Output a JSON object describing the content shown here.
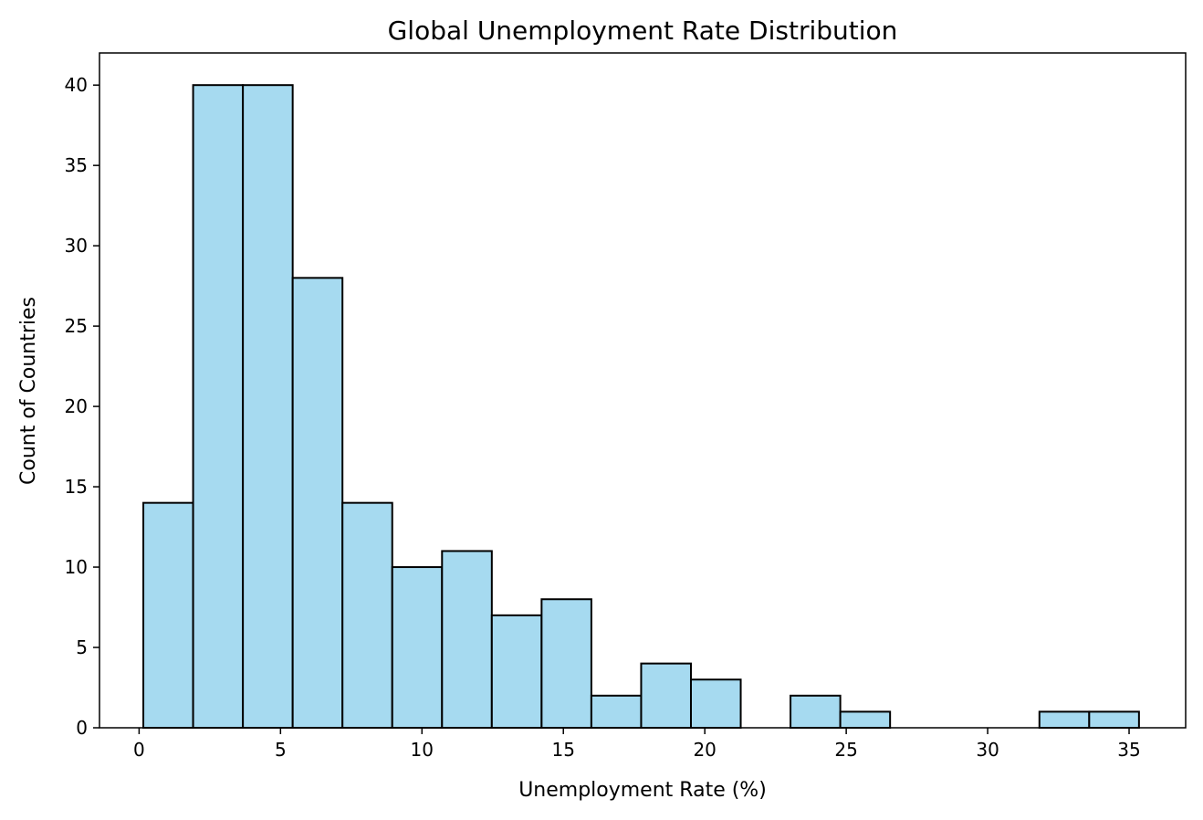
{
  "chart_data": {
    "type": "bar",
    "subtype": "histogram",
    "title": "Global Unemployment Rate Distribution",
    "xlabel": "Unemployment Rate (%)",
    "ylabel": "Count of Countries",
    "xlim": [
      -1.4,
      37.0
    ],
    "ylim": [
      0,
      42
    ],
    "x_ticks": [
      0,
      5,
      10,
      15,
      20,
      25,
      30,
      35
    ],
    "y_ticks": [
      0,
      5,
      10,
      15,
      20,
      25,
      30,
      35,
      40
    ],
    "bin_edges": [
      0.15,
      1.91,
      3.67,
      5.43,
      7.19,
      8.95,
      10.71,
      12.47,
      14.23,
      15.99,
      17.75,
      19.51,
      21.27,
      23.03,
      24.79,
      26.55,
      28.31,
      30.07,
      31.83,
      33.59,
      35.35
    ],
    "counts": [
      14,
      40,
      40,
      28,
      14,
      10,
      11,
      7,
      8,
      2,
      4,
      3,
      0,
      2,
      1,
      0,
      0,
      0,
      1,
      1
    ],
    "bar_color": "#a6daf0",
    "edge_color": "#000000",
    "grid": false,
    "legend": "none"
  }
}
